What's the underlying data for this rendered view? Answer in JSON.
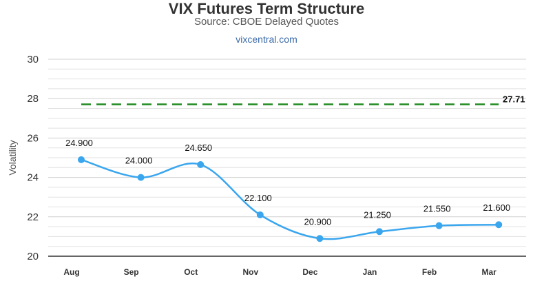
{
  "title": "VIX Futures Term Structure",
  "subtitle": "Source: CBOE Delayed Quotes",
  "source_link": "vixcentral.com",
  "colors": {
    "series": "#3aa6ee",
    "reference": "#1f8a1f",
    "grid": "#e2e2e2",
    "axis": "#333333"
  },
  "chart_data": {
    "type": "line",
    "title": "VIX Futures Term Structure",
    "subtitle": "Source: CBOE Delayed Quotes",
    "xlabel": "",
    "ylabel": "Volatility",
    "categories": [
      "Aug",
      "Sep",
      "Oct",
      "Nov",
      "Dec",
      "Jan",
      "Feb",
      "Mar"
    ],
    "series": [
      {
        "values": [
          24.9,
          24.0,
          24.65,
          22.1,
          20.9,
          21.25,
          21.55,
          21.6
        ],
        "labels": [
          "24.900",
          "24.000",
          "24.650",
          "22.100",
          "20.900",
          "21.250",
          "21.550",
          "21.600"
        ],
        "smooth": true
      }
    ],
    "reference_line": {
      "value": 27.71,
      "label": "27.71",
      "style": "dashed"
    },
    "ylim": [
      20,
      30
    ],
    "yticks": [
      20,
      22,
      24,
      26,
      28,
      30
    ],
    "grid": true,
    "legend": "none"
  }
}
